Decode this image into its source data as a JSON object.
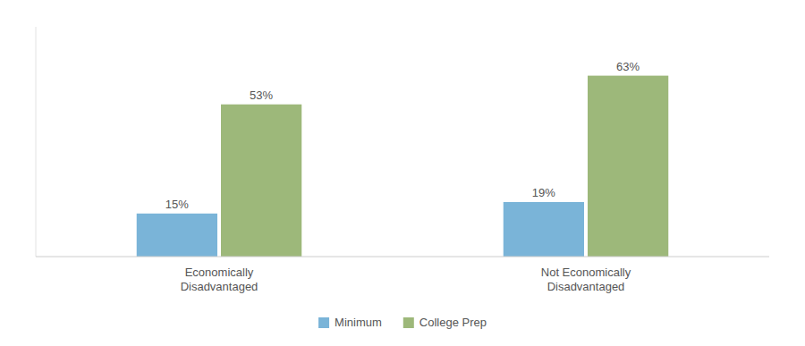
{
  "chart_data": {
    "type": "bar",
    "categories": [
      "Economically\nDisadvantaged",
      "Not Economically\nDisadvantaged"
    ],
    "series": [
      {
        "name": "Minimum",
        "color": "#7ab4d8",
        "values": [
          15,
          19
        ],
        "value_labels": [
          "15%",
          "19%"
        ]
      },
      {
        "name": "College Prep",
        "color": "#9db87a",
        "values": [
          53,
          63
        ],
        "value_labels": [
          "53%",
          "63%"
        ]
      }
    ],
    "ylim": [
      0,
      80
    ],
    "data_labels": true,
    "tick_labels": "x",
    "legend": "bottom",
    "grid": false
  }
}
